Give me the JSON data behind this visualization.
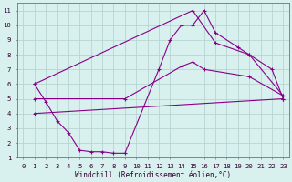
{
  "xlabel": "Windchill (Refroidissement éolien,°C)",
  "bg_color": "#d8f0ee",
  "line_color": "#880088",
  "grid_color": "#b0d0ce",
  "xlim": [
    -0.5,
    23.5
  ],
  "ylim": [
    1,
    11.5
  ],
  "xticks": [
    0,
    1,
    2,
    3,
    4,
    5,
    6,
    7,
    8,
    9,
    10,
    11,
    12,
    13,
    14,
    15,
    16,
    17,
    18,
    19,
    20,
    21,
    22,
    23
  ],
  "yticks": [
    1,
    2,
    3,
    4,
    5,
    6,
    7,
    8,
    9,
    10,
    11
  ],
  "line1_x": [
    1,
    2,
    3,
    4,
    5,
    6,
    7,
    8,
    9,
    12,
    13,
    14,
    15,
    16,
    17,
    19,
    20,
    22,
    23
  ],
  "line1_y": [
    6.0,
    4.8,
    3.5,
    2.7,
    1.5,
    1.4,
    1.4,
    1.3,
    1.3,
    7.0,
    9.0,
    10.0,
    10.0,
    11.0,
    9.5,
    8.5,
    8.0,
    7.0,
    5.0
  ],
  "line2_x": [
    1,
    15,
    17,
    20,
    23
  ],
  "line2_y": [
    6.0,
    11.0,
    8.8,
    8.0,
    5.2
  ],
  "line3_x": [
    1,
    9,
    14,
    15,
    16,
    20,
    23
  ],
  "line3_y": [
    5.0,
    5.0,
    7.2,
    7.5,
    7.0,
    6.5,
    5.2
  ],
  "line4_x": [
    1,
    23
  ],
  "line4_y": [
    4.0,
    5.0
  ],
  "marker": "+"
}
